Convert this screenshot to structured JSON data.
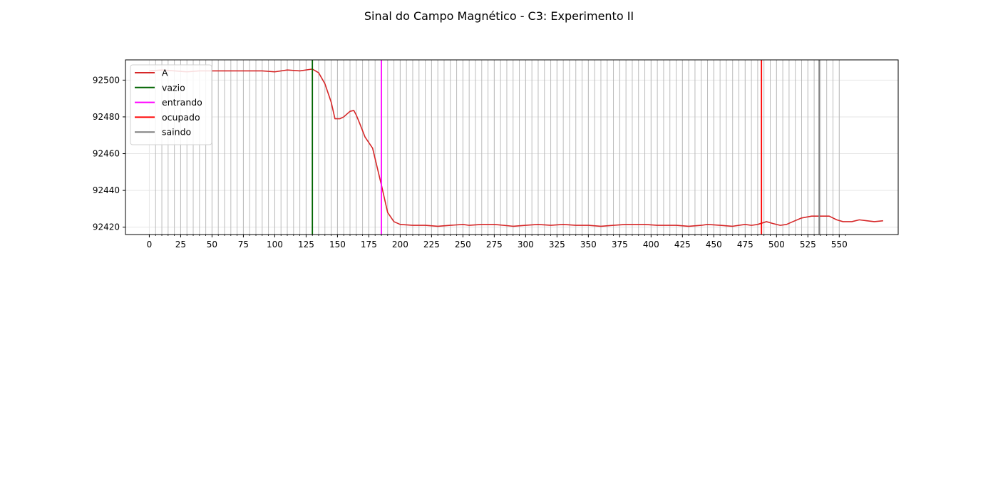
{
  "figure": {
    "title": "Sinal do Campo Magnético - C3: Experimento II"
  },
  "colors": {
    "A": "#d62728",
    "G": "#e377c2",
    "vazio": "#006400",
    "entrando": "#ff00ff",
    "ocupado": "#ff0000",
    "saindo": "#808080",
    "sample_marks": "#b0b0b0",
    "grid": "#e6e6e6"
  },
  "chart_data": [
    {
      "type": "line",
      "xlabel": "",
      "ylabel": "",
      "xlim": [
        -19,
        597
      ],
      "ylim": [
        92416,
        92511
      ],
      "xticks": [
        0,
        25,
        50,
        75,
        100,
        125,
        150,
        175,
        200,
        225,
        250,
        275,
        300,
        325,
        350,
        375,
        400,
        425,
        450,
        475,
        500,
        525,
        550
      ],
      "yticks": [
        92420,
        92440,
        92460,
        92480,
        92500
      ],
      "grid": true,
      "legend_position": "upper-left",
      "legend": [
        "A",
        "vazio",
        "entrando",
        "ocupado",
        "saindo"
      ],
      "series": [
        {
          "name": "A",
          "color_key": "A",
          "points": [
            [
              0,
              92505
            ],
            [
              10,
              92505.5
            ],
            [
              20,
              92505
            ],
            [
              30,
              92504.5
            ],
            [
              40,
              92505
            ],
            [
              50,
              92505
            ],
            [
              70,
              92505
            ],
            [
              90,
              92505
            ],
            [
              100,
              92504.5
            ],
            [
              110,
              92505.5
            ],
            [
              120,
              92505
            ],
            [
              130,
              92506
            ],
            [
              135,
              92504
            ],
            [
              140,
              92498
            ],
            [
              145,
              92488
            ],
            [
              148,
              92479
            ],
            [
              152,
              92479
            ],
            [
              155,
              92480
            ],
            [
              160,
              92483
            ],
            [
              163,
              92483.5
            ],
            [
              165,
              92481
            ],
            [
              168,
              92476
            ],
            [
              172,
              92469
            ],
            [
              178,
              92463
            ],
            [
              185,
              92443
            ],
            [
              190,
              92428
            ],
            [
              195,
              92423
            ],
            [
              200,
              92421.5
            ],
            [
              210,
              92421
            ],
            [
              220,
              92421
            ],
            [
              230,
              92420.5
            ],
            [
              240,
              92421
            ],
            [
              250,
              92421.5
            ],
            [
              255,
              92421
            ],
            [
              265,
              92421.5
            ],
            [
              275,
              92421.5
            ],
            [
              290,
              92420.5
            ],
            [
              300,
              92421
            ],
            [
              310,
              92421.5
            ],
            [
              320,
              92421
            ],
            [
              330,
              92421.5
            ],
            [
              340,
              92421
            ],
            [
              350,
              92421
            ],
            [
              360,
              92420.5
            ],
            [
              370,
              92421
            ],
            [
              380,
              92421.5
            ],
            [
              395,
              92421.5
            ],
            [
              405,
              92421
            ],
            [
              415,
              92421
            ],
            [
              420,
              92421
            ],
            [
              430,
              92420.5
            ],
            [
              440,
              92421
            ],
            [
              445,
              92421.5
            ],
            [
              455,
              92421
            ],
            [
              465,
              92420.5
            ],
            [
              475,
              92421.5
            ],
            [
              480,
              92421
            ],
            [
              485,
              92421.5
            ],
            [
              492,
              92423
            ],
            [
              497,
              92422
            ],
            [
              503,
              92421
            ],
            [
              508,
              92421.5
            ],
            [
              513,
              92423
            ],
            [
              520,
              92425
            ],
            [
              528,
              92426
            ],
            [
              535,
              92426
            ],
            [
              542,
              92426
            ],
            [
              548,
              92424
            ],
            [
              553,
              92423
            ],
            [
              560,
              92423
            ],
            [
              566,
              92424
            ],
            [
              572,
              92423.5
            ],
            [
              578,
              92423
            ],
            [
              585,
              92423.5
            ]
          ]
        }
      ]
    }
  ]
}
